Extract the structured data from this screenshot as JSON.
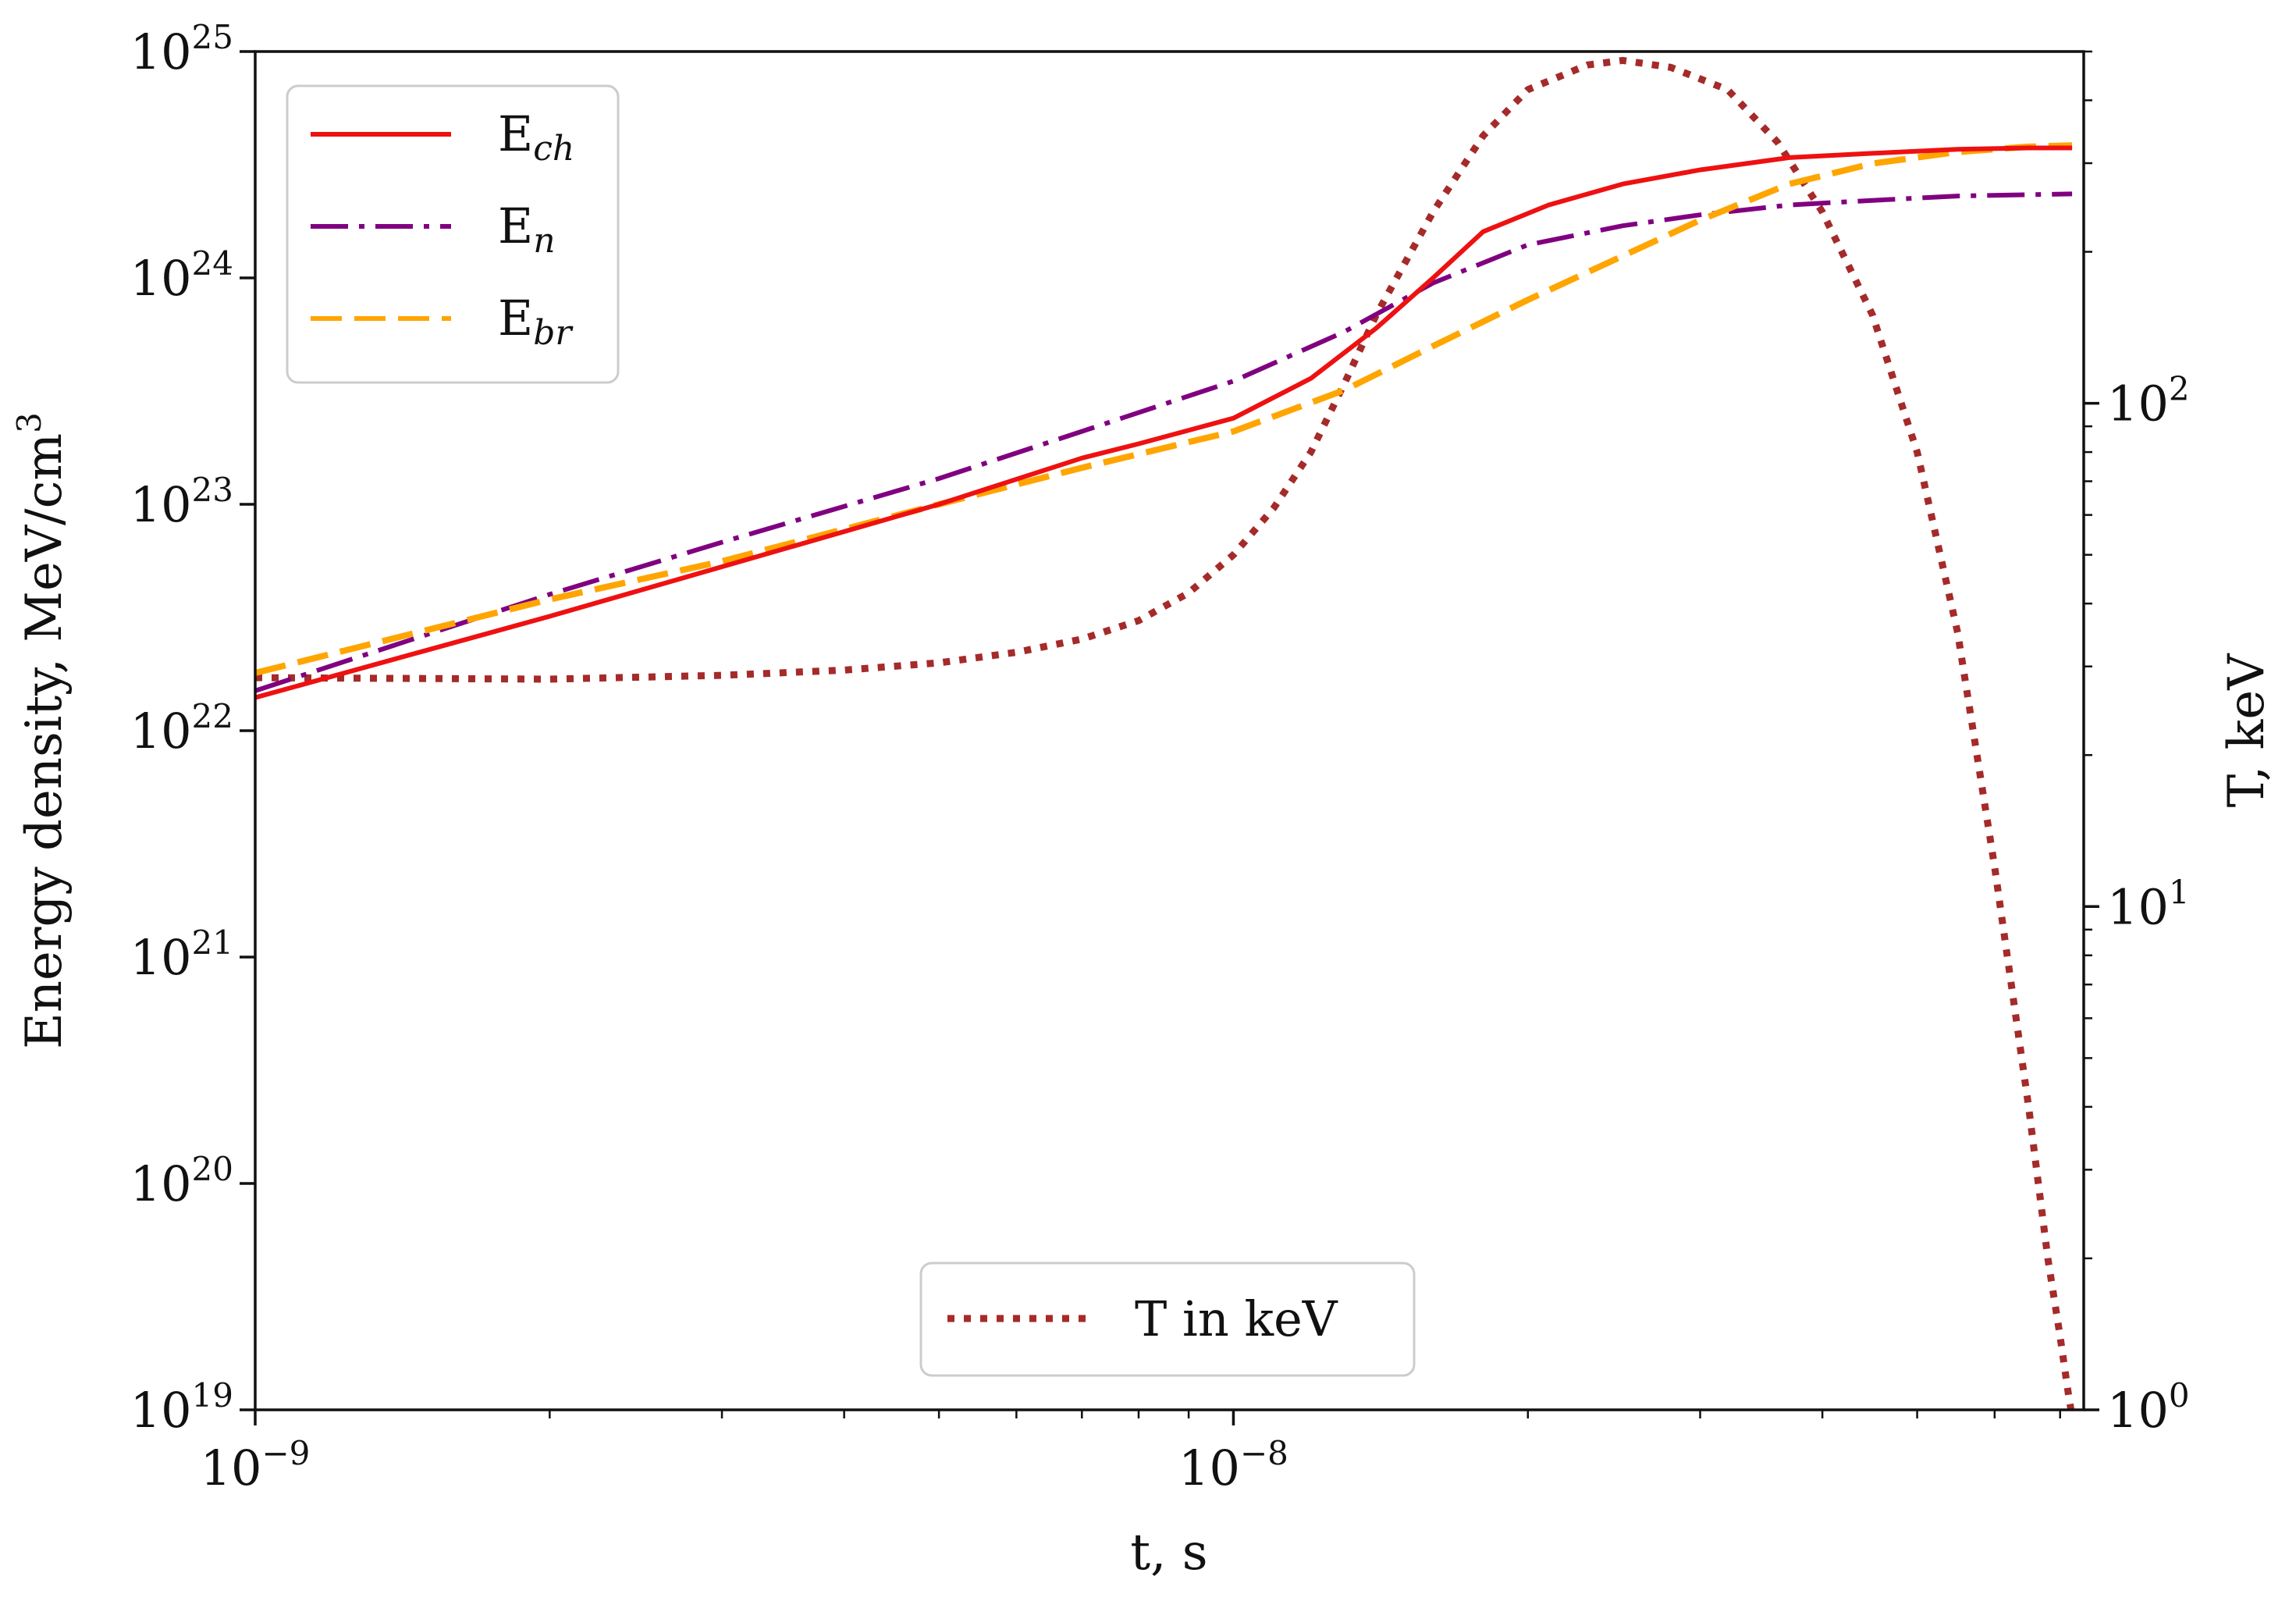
{
  "chart_data": {
    "type": "line",
    "title": "",
    "xlabel": "t, s",
    "ylabel": "Energy density, MeV/cm",
    "ylabel_sup": "3",
    "y2label": "T, keV",
    "xscale": "log",
    "yscale": "log",
    "y2scale": "log",
    "xlim": [
      1e-09,
      7.4e-08
    ],
    "ylim": [
      1e+19,
      1e+25
    ],
    "y2lim": [
      1,
      500
    ],
    "grid": false,
    "x_ticks": [
      {
        "value": 1e-09,
        "base": "10",
        "exp": "−9"
      },
      {
        "value": 1e-08,
        "base": "10",
        "exp": "−8"
      }
    ],
    "y_ticks": [
      {
        "value": 1e+19,
        "base": "10",
        "exp": "19"
      },
      {
        "value": 1e+20,
        "base": "10",
        "exp": "20"
      },
      {
        "value": 1e+21,
        "base": "10",
        "exp": "21"
      },
      {
        "value": 1e+22,
        "base": "10",
        "exp": "22"
      },
      {
        "value": 1e+23,
        "base": "10",
        "exp": "23"
      },
      {
        "value": 1e+24,
        "base": "10",
        "exp": "24"
      },
      {
        "value": 1e+25,
        "base": "10",
        "exp": "25"
      }
    ],
    "y2_ticks": [
      {
        "value": 1,
        "base": "10",
        "exp": "0"
      },
      {
        "value": 10,
        "base": "10",
        "exp": "1"
      },
      {
        "value": 100,
        "base": "10",
        "exp": "2"
      }
    ],
    "series": [
      {
        "name": "E_ch",
        "label_main": "E",
        "label_sub": "ch",
        "axis": "left",
        "color": "#ee1111",
        "style": "solid",
        "x": [
          1e-09,
          2e-09,
          3e-09,
          5e-09,
          7e-09,
          8e-09,
          1e-08,
          1.2e-08,
          1.4e-08,
          1.6e-08,
          1.8e-08,
          2.1e-08,
          2.5e-08,
          3e-08,
          3.7e-08,
          4.5e-08,
          5.5e-08,
          6.5e-08,
          7.2e-08
        ],
        "y": [
          1.4e+22,
          3.2e+22,
          5.3e+22,
          1e+23,
          1.6e+23,
          1.85e+23,
          2.4e+23,
          3.6e+23,
          6e+23,
          1e+24,
          1.6e+24,
          2.1e+24,
          2.6e+24,
          3e+24,
          3.4e+24,
          3.55e+24,
          3.7e+24,
          3.75e+24,
          3.75e+24
        ]
      },
      {
        "name": "E_n",
        "label_main": "E",
        "label_sub": "n",
        "axis": "left",
        "color": "#800080",
        "style": "dashdot",
        "x": [
          1e-09,
          2e-09,
          3e-09,
          5e-09,
          7e-09,
          1e-08,
          1.3e-08,
          1.6e-08,
          2e-08,
          2.5e-08,
          3e-08,
          3.7e-08,
          4.5e-08,
          5.5e-08,
          7.2e-08
        ],
        "y": [
          1.5e+22,
          4e+22,
          6.8e+22,
          1.3e+23,
          2.1e+23,
          3.5e+23,
          5.8e+23,
          9.5e+23,
          1.4e+24,
          1.7e+24,
          1.9e+24,
          2.1e+24,
          2.2e+24,
          2.3e+24,
          2.35e+24
        ]
      },
      {
        "name": "E_br",
        "label_main": "E",
        "label_sub": "br",
        "axis": "left",
        "color": "#ffa500",
        "style": "dashed",
        "x": [
          1e-09,
          2e-09,
          3e-09,
          5e-09,
          7e-09,
          1e-08,
          1.3e-08,
          1.6e-08,
          2e-08,
          2.5e-08,
          3e-08,
          3.7e-08,
          4.5e-08,
          5.5e-08,
          6.5e-08,
          7.2e-08
        ],
        "y": [
          1.8e+22,
          3.8e+22,
          5.6e+22,
          1e+23,
          1.45e+23,
          2.1e+23,
          3.2e+23,
          5e+23,
          8e+23,
          1.25e+24,
          1.8e+24,
          2.6e+24,
          3.2e+24,
          3.6e+24,
          3.8e+24,
          3.85e+24
        ]
      },
      {
        "name": "T in keV",
        "axis": "right",
        "color": "#a52a2a",
        "style": "dotted",
        "x": [
          1e-09,
          2e-09,
          3e-09,
          4e-09,
          5e-09,
          6e-09,
          7e-09,
          8e-09,
          9e-09,
          1e-08,
          1.1e-08,
          1.2e-08,
          1.3e-08,
          1.4e-08,
          1.6e-08,
          1.8e-08,
          2e-08,
          2.3e-08,
          2.5e-08,
          2.8e-08,
          3.2e-08,
          3.6e-08,
          4e-08,
          4.5e-08,
          5e-08,
          5.5e-08,
          6e-08,
          6.5e-08,
          6.8e-08,
          7e-08,
          7.15e-08,
          7.25e-08
        ],
        "y": [
          28.5,
          28.3,
          28.8,
          29.5,
          30.5,
          32,
          34,
          37,
          42,
          50,
          62,
          80,
          110,
          150,
          240,
          340,
          420,
          470,
          480,
          465,
          420,
          330,
          240,
          150,
          80,
          35,
          12,
          4,
          2,
          1.4,
          1.05,
          0.9
        ]
      }
    ],
    "legends": [
      {
        "location": "upper left",
        "entries": [
          "E_ch",
          "E_n",
          "E_br"
        ]
      },
      {
        "location": "lower center",
        "entries": [
          "T in keV"
        ]
      }
    ],
    "legend_t_label": "T in keV"
  }
}
